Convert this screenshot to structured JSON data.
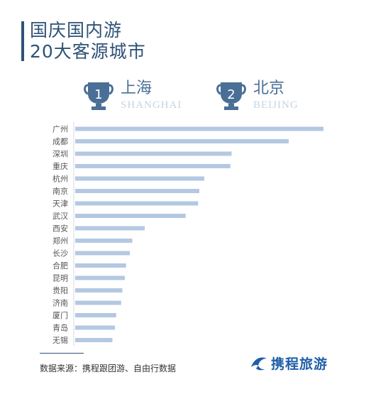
{
  "header": {
    "title_line1": "国庆国内游",
    "title_line2": "20大客源城市"
  },
  "podium": [
    {
      "rank": "1",
      "name": "上海",
      "pinyin": "SHANGHAI",
      "icon": "trophy-icon"
    },
    {
      "rank": "2",
      "name": "北京",
      "pinyin": "BEIJING",
      "icon": "trophy-icon"
    }
  ],
  "chart_data": {
    "type": "bar",
    "orientation": "horizontal",
    "categories": [
      "广州",
      "成都",
      "深圳",
      "重庆",
      "杭州",
      "南京",
      "天津",
      "武汉",
      "西安",
      "郑州",
      "长沙",
      "合肥",
      "昆明",
      "贵阳",
      "济南",
      "厦门",
      "青岛",
      "无锡"
    ],
    "values": [
      100,
      86,
      63,
      62.5,
      52,
      50,
      49.5,
      44.5,
      28,
      23,
      22,
      20.5,
      20,
      19,
      18.5,
      16.5,
      16,
      15
    ],
    "xlim": [
      0,
      100
    ],
    "grid": false,
    "bar_color": "#b4c8e2"
  },
  "footer": {
    "source": "数据来源：携程跟团游、自由行数据",
    "brand": "携程旅游",
    "brand_icon": "dolphin-icon"
  },
  "colors": {
    "title": "#2f5277",
    "accent": "#4a6f96",
    "bar": "#b4c8e2",
    "brand": "#1f5fa8"
  }
}
